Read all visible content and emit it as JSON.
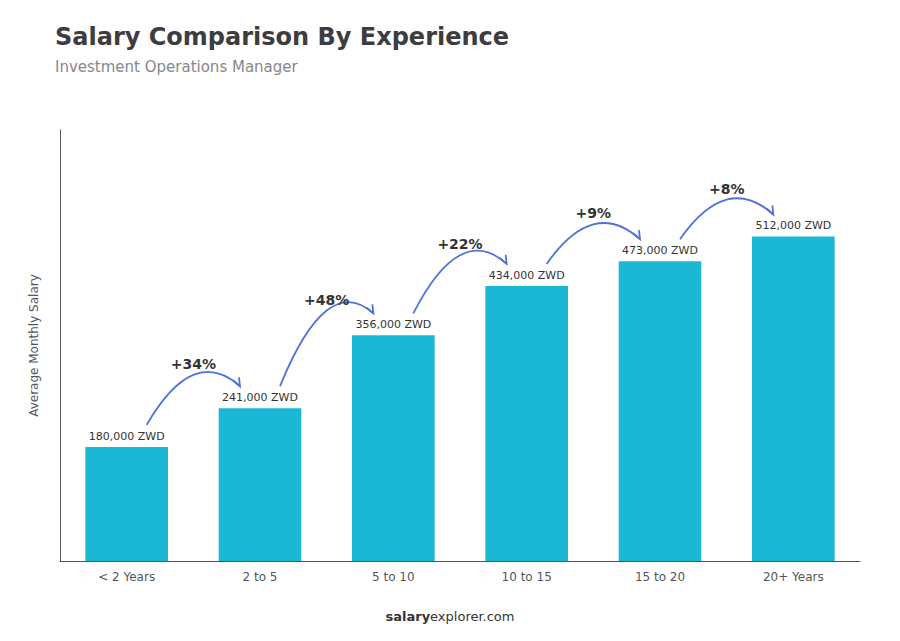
{
  "chart_data": {
    "type": "bar",
    "title": "Salary Comparison By Experience",
    "subtitle": "Investment Operations Manager",
    "y_label": "Average Monthly Salary",
    "categories": [
      "< 2 Years",
      "2 to 5",
      "5 to 10",
      "10 to 15",
      "15 to 20",
      "20+ Years"
    ],
    "values": [
      180000,
      241000,
      356000,
      434000,
      473000,
      512000
    ],
    "value_labels": [
      "180,000 ZWD",
      "241,000 ZWD",
      "356,000 ZWD",
      "434,000 ZWD",
      "473,000 ZWD",
      "512,000 ZWD"
    ],
    "data_labels": true,
    "annotations": [
      "+34%",
      "+48%",
      "+22%",
      "+9%",
      "+8%"
    ],
    "footer": [
      "salary",
      "explorer.com"
    ],
    "color": "#1ab8d4",
    "ylim": [
      0,
      680000
    ],
    "tick_labels": "x",
    "grid": false
  }
}
